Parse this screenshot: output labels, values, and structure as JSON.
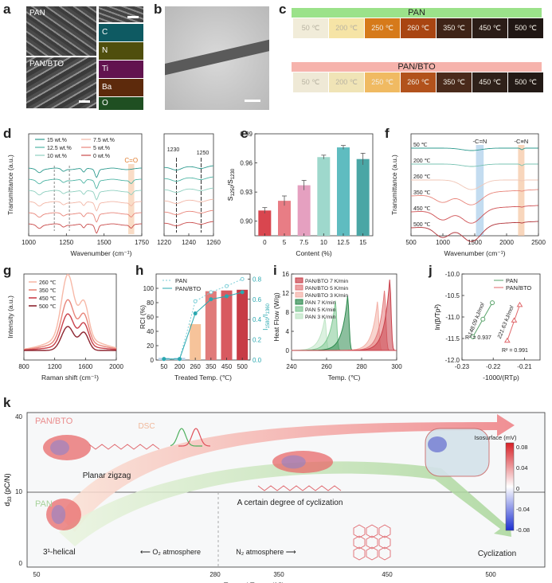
{
  "panel_labels": [
    "a",
    "b",
    "c",
    "d",
    "e",
    "f",
    "g",
    "h",
    "i",
    "j",
    "k"
  ],
  "panel_a": {
    "sem_labels": [
      "PAN",
      "PAN/BTO"
    ],
    "map_labels": [
      "C",
      "N",
      "Ti",
      "Ba",
      "O"
    ],
    "map_colors": [
      "#27b8c8",
      "#9c9a1e",
      "#c23aa0",
      "#b85a1e",
      "#4aa24a"
    ]
  },
  "panel_c": {
    "rows": [
      {
        "title": "PAN",
        "banner_color": "#9be28a",
        "swatches": [
          {
            "label": "50 ℃",
            "color": "#f1ecd9"
          },
          {
            "label": "200 ℃",
            "color": "#f6e4a6"
          },
          {
            "label": "250 ℃",
            "color": "#d67a1a"
          },
          {
            "label": "260 ℃",
            "color": "#a94512"
          },
          {
            "label": "350 ℃",
            "color": "#3f2417"
          },
          {
            "label": "450 ℃",
            "color": "#2b1d17"
          },
          {
            "label": "500 ℃",
            "color": "#201714"
          }
        ]
      },
      {
        "title": "PAN/BTO",
        "banner_color": "#f6b3ac",
        "swatches": [
          {
            "label": "50 ℃",
            "color": "#efe9d6"
          },
          {
            "label": "200 ℃",
            "color": "#f0e4b6"
          },
          {
            "label": "250 ℃",
            "color": "#f0ba62"
          },
          {
            "label": "260 ℃",
            "color": "#b2521c"
          },
          {
            "label": "350 ℃",
            "color": "#4a2a1b"
          },
          {
            "label": "450 ℃",
            "color": "#2f211a"
          },
          {
            "label": "500 ℃",
            "color": "#231a16"
          }
        ]
      }
    ]
  },
  "chart_data": [
    {
      "panel": "d",
      "type": "line",
      "xlabel": "Wavenumber (cm⁻¹)",
      "ylabel": "Transmittance (a.u.)",
      "xlim": [
        1000,
        1750
      ],
      "xticks": [
        1000,
        1250,
        1500,
        1750
      ],
      "inset_xticks": [
        1220,
        1240,
        1260
      ],
      "annotations": [
        "C=O",
        "1230",
        "1250"
      ],
      "series": [
        {
          "name": "15 wt.%",
          "color": "#2e9b8f"
        },
        {
          "name": "12.5 wt.%",
          "color": "#4fb5a5"
        },
        {
          "name": "10 wt.%",
          "color": "#8fd0c0"
        },
        {
          "name": "7.5 wt.%",
          "color": "#f2b6a6"
        },
        {
          "name": "5 wt.%",
          "color": "#e8857a"
        },
        {
          "name": "0 wt.%",
          "color": "#c94b4b"
        }
      ]
    },
    {
      "panel": "e",
      "type": "bar",
      "categories": [
        "0",
        "5",
        "7.5",
        "10",
        "12.5",
        "15"
      ],
      "values": [
        0.911,
        0.921,
        0.937,
        0.966,
        0.976,
        0.964
      ],
      "errors": [
        0.003,
        0.005,
        0.005,
        0.002,
        0.002,
        0.006
      ],
      "colors": [
        "#d9464f",
        "#e87d85",
        "#e5a0c0",
        "#9ed8cc",
        "#5fbcc0",
        "#4aa6a5"
      ],
      "xlabel": "Content (%)",
      "ylabel": "S1250/S1230",
      "ylim": [
        0.885,
        0.99
      ],
      "yticks": [
        "0.90",
        "0.93",
        "0.96",
        "0.99"
      ]
    },
    {
      "panel": "f",
      "type": "line",
      "xlabel": "Wavenumber (cm⁻¹)",
      "ylabel": "Transmittance (a.u.)",
      "xlim": [
        500,
        2500
      ],
      "xticks": [
        500,
        1000,
        1500,
        2000,
        2500
      ],
      "annotations": [
        "-C=N",
        "-C≡N"
      ],
      "series": [
        {
          "name": "50 ℃",
          "color": "#2e9b8f"
        },
        {
          "name": "200 ℃",
          "color": "#79c3b3"
        },
        {
          "name": "260 ℃",
          "color": "#f0c6b6"
        },
        {
          "name": "350 ℃",
          "color": "#e8857a"
        },
        {
          "name": "450 ℃",
          "color": "#cf4f52"
        },
        {
          "name": "500 ℃",
          "color": "#b03036"
        }
      ]
    },
    {
      "panel": "g",
      "type": "line",
      "xlabel": "Raman shift (cm⁻¹)",
      "ylabel": "Intensity (a.u.)",
      "xlim": [
        800,
        2000
      ],
      "xticks": [
        800,
        1200,
        1600,
        2000
      ],
      "series": [
        {
          "name": "260 ℃",
          "color": "#f7b9a8"
        },
        {
          "name": "350 ℃",
          "color": "#e8857a"
        },
        {
          "name": "450 ℃",
          "color": "#c9404a"
        },
        {
          "name": "500 ℃",
          "color": "#8e2631"
        }
      ]
    },
    {
      "panel": "h",
      "type": "bar",
      "categories": [
        "50",
        "200",
        "260",
        "350",
        "450",
        "500"
      ],
      "rci_values": [
        3,
        3,
        50,
        96,
        97,
        98
      ],
      "ratio_pan": [
        0.01,
        0.01,
        0.58,
        0.67,
        0.73,
        0.8
      ],
      "ratio_pan_bto": [
        0.01,
        0.01,
        0.46,
        0.6,
        0.63,
        0.67
      ],
      "xlabel": "Treated Temp. (℃)",
      "ylabel": "RCI (%)",
      "ylabel_right": "I1580/I1360",
      "ylim": [
        0,
        120
      ],
      "yticks": [
        "0",
        "20",
        "40",
        "60",
        "80",
        "100"
      ],
      "ylim_right": [
        0,
        0.85
      ],
      "yticks_right": [
        "0.0",
        "0.2",
        "0.4",
        "0.6",
        "0.8"
      ],
      "series": [
        {
          "name": "PAN",
          "color": "#7dcfd8"
        },
        {
          "name": "PAN/BTO",
          "color": "#2aa8b0"
        }
      ]
    },
    {
      "panel": "i",
      "type": "area",
      "xlabel": "Temp. (℃)",
      "ylabel": "Heat Flow (W/g)",
      "xlim": [
        240,
        300
      ],
      "xticks": [
        240,
        260,
        280,
        300
      ],
      "ylim": [
        -2,
        16
      ],
      "yticks": [
        "0",
        "4",
        "8",
        "12",
        "16"
      ],
      "series": [
        {
          "name": "PAN/BTO 7 K/min",
          "color": "#c9404a",
          "peak": 296,
          "height": 14.8
        },
        {
          "name": "PAN/BTO 5 K/min",
          "color": "#e37a7c",
          "peak": 293,
          "height": 12.5
        },
        {
          "name": "PAN/BTO 3 K/min",
          "color": "#f3b0a6",
          "peak": 289,
          "height": 10.2
        },
        {
          "name": "PAN 7 K/min",
          "color": "#2d8a4e",
          "peak": 272,
          "height": 11.4
        },
        {
          "name": "PAN 5 K/min",
          "color": "#7fc893",
          "peak": 265,
          "height": 10.4
        },
        {
          "name": "PAN 3 K/min",
          "color": "#bfe5c6",
          "peak": 259,
          "height": 6.8
        }
      ]
    },
    {
      "panel": "j",
      "type": "scatter",
      "xlabel": "-1000/(RTp)",
      "ylabel": "ln(β/Tp²)",
      "xlim": [
        -0.23,
        -0.205
      ],
      "xticks": [
        "-0.23",
        "-0.22",
        "-0.21"
      ],
      "ylim": [
        -12.0,
        -10.0
      ],
      "yticks": [
        "-10.0",
        "-10.5",
        "-11.0",
        "-11.5",
        "-12.0"
      ],
      "series": [
        {
          "name": "PAN",
          "color": "#5aa36b",
          "x": [
            -0.2265,
            -0.2233,
            -0.2203
          ],
          "y": [
            -11.46,
            -11.05,
            -10.67
          ],
          "ea": "148.09 kJ/mol",
          "r2": "R² = 0.937"
        },
        {
          "name": "PAN/BTO",
          "color": "#e0676a",
          "x": [
            -0.2155,
            -0.2133,
            -0.2115
          ],
          "y": [
            -11.55,
            -11.08,
            -10.72
          ],
          "ea": "221.63 kJ/mol",
          "r2": "R² = 0.991"
        }
      ]
    }
  ],
  "panel_k": {
    "ylabel": "d33 (pC/N)",
    "xlabel": "Treated Temp. (℃)",
    "yticks": [
      "40",
      "10",
      "0"
    ],
    "xticks": [
      "50",
      "280",
      "350",
      "450",
      "500"
    ],
    "labels": {
      "pan_bto": "PAN/BTO",
      "pan": "PAN",
      "dsc": "DSC",
      "planar": "Planar zigzag",
      "helical": "3¹-helical",
      "partial": "A certain degree of cyclization",
      "cyclization": "Cyclization",
      "o2": "O₂ atmosphere",
      "n2": "N₂ atmosphere",
      "isosurface": "Isosurface (mV)"
    },
    "colorbar_ticks": [
      "0.08",
      "0.04",
      "0",
      "-0.04",
      "-0.08"
    ]
  },
  "scalebar_color": "#ffffff"
}
